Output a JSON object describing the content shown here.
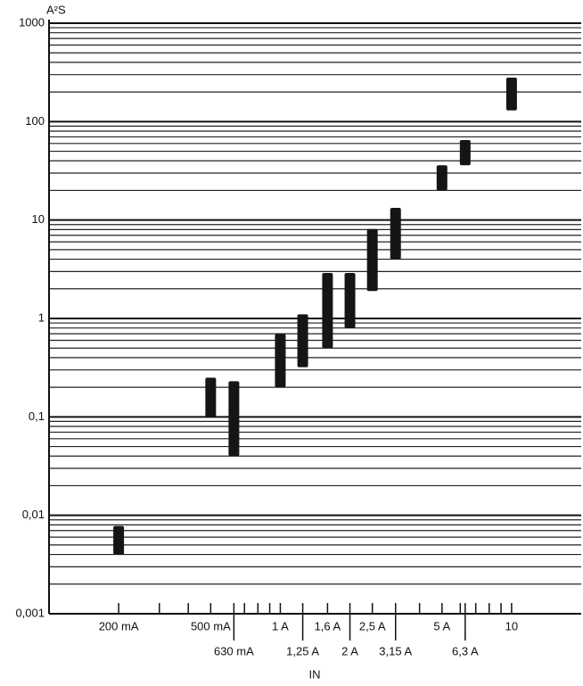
{
  "chart_data": {
    "type": "range-bar",
    "y_label": "A²S",
    "x_label": "IN",
    "y_log": true,
    "x_log": true,
    "minor_grid": true,
    "color": "#151515",
    "ylim": [
      0.001,
      1000
    ],
    "yticks": [
      {
        "value": 0.001,
        "label": "0,001"
      },
      {
        "value": 0.01,
        "label": "0,01"
      },
      {
        "value": 0.1,
        "label": "0,1"
      },
      1,
      10,
      100,
      1000
    ],
    "xlim": [
      0.1,
      20
    ],
    "xticks": [
      {
        "value": 0.2,
        "label": "200 mA"
      },
      {
        "value": 0.5,
        "label": "500 mA"
      },
      {
        "value": 0.63,
        "label": "630 mA"
      },
      {
        "value": 1,
        "label": "1 A"
      },
      {
        "value": 1.25,
        "label": "1,25 A"
      },
      {
        "value": 1.6,
        "label": "1,6 A"
      },
      {
        "value": 2,
        "label": "2 A"
      },
      {
        "value": 2.5,
        "label": "2,5 A"
      },
      {
        "value": 3.15,
        "label": "3,15 A"
      },
      {
        "value": 5,
        "label": "5 A"
      },
      {
        "value": 6.3,
        "label": "6,3 A"
      },
      10
    ],
    "xminor_ticks": [
      0.3,
      0.4,
      0.7,
      0.8,
      0.9,
      4,
      6,
      7,
      8,
      9
    ],
    "x": [
      0.2,
      0.5,
      0.63,
      1,
      1.25,
      1.6,
      2,
      2.5,
      3.15,
      5,
      6.3,
      10
    ],
    "low": [
      0.004,
      0.1,
      0.04,
      0.2,
      0.32,
      0.5,
      0.8,
      1.9,
      4,
      20,
      36,
      130
    ],
    "high": [
      0.0078,
      0.25,
      0.23,
      0.7,
      1.1,
      2.9,
      2.9,
      8.1,
      13.3,
      36,
      65,
      280
    ]
  }
}
